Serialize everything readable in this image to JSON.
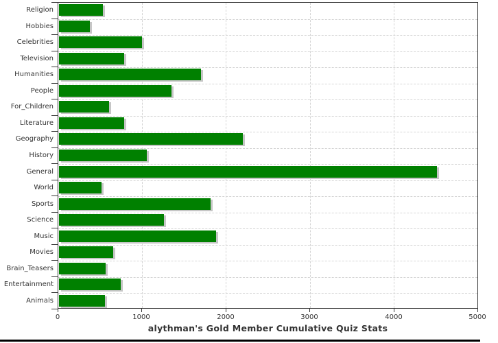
{
  "chart_data": {
    "type": "bar",
    "orientation": "horizontal",
    "title": "alythman's Gold Member Cumulative Quiz Stats",
    "categories": [
      "Religion",
      "Hobbies",
      "Celebrities",
      "Television",
      "Humanities",
      "People",
      "For_Children",
      "Literature",
      "Geography",
      "History",
      "General",
      "World",
      "Sports",
      "Science",
      "Music",
      "Movies",
      "Brain_Teasers",
      "Entertainment",
      "Animals"
    ],
    "values": [
      520,
      370,
      990,
      775,
      1690,
      1340,
      595,
      780,
      2190,
      1045,
      4510,
      510,
      1810,
      1255,
      1870,
      645,
      560,
      740,
      550
    ],
    "xlabel": "",
    "ylabel": "",
    "xlim": [
      0,
      5000
    ],
    "x_ticks": [
      0,
      1000,
      2000,
      3000,
      4000,
      5000
    ],
    "grid": "dashed vertical at x ticks and horizontal at category boundaries",
    "legend_position": "none",
    "colors": {
      "bar": "#008000",
      "bar_shadow": "#c6c6c6",
      "grid": "#d4d4d4",
      "axis": "#333333",
      "text": "#333333"
    }
  }
}
